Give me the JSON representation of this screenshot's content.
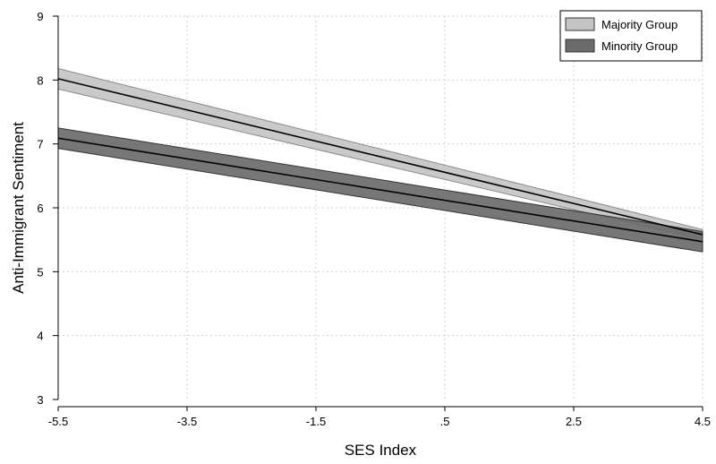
{
  "chart_data": {
    "type": "line",
    "title": "",
    "xlabel": "SES Index",
    "ylabel": "Anti-Immigrant Sentiment",
    "xlim": [
      -5.5,
      4.5
    ],
    "ylim": [
      3,
      9
    ],
    "x_ticks": [
      -5.5,
      -3.5,
      -1.5,
      0.5,
      2.5,
      4.5
    ],
    "x_tick_labels": [
      "-5.5",
      "-3.5",
      "-1.5",
      ".5",
      "2.5",
      "4.5"
    ],
    "y_ticks": [
      3,
      4,
      5,
      6,
      7,
      8,
      9
    ],
    "y_tick_labels": [
      "3",
      "4",
      "5",
      "6",
      "7",
      "8",
      "9"
    ],
    "grid": true,
    "legend_position": "top-right",
    "series": [
      {
        "name": "Majority Group",
        "x": [
          -5.5,
          4.5
        ],
        "y": [
          8.02,
          5.58
        ],
        "ci_lower": [
          7.86,
          5.5
        ],
        "ci_upper": [
          8.18,
          5.66
        ],
        "color": "#c4c4c4"
      },
      {
        "name": "Minority Group",
        "x": [
          -5.5,
          4.5
        ],
        "y": [
          7.09,
          5.47
        ],
        "ci_lower": [
          6.93,
          5.31
        ],
        "ci_upper": [
          7.25,
          5.63
        ],
        "color": "#6b6b6b"
      }
    ]
  }
}
